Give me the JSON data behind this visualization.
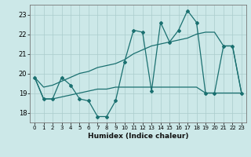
{
  "title": "",
  "xlabel": "Humidex (Indice chaleur)",
  "background_color": "#cce8e8",
  "grid_color": "#aacccc",
  "line_color": "#1a7070",
  "x_hours": [
    0,
    1,
    2,
    3,
    4,
    5,
    6,
    7,
    8,
    9,
    10,
    11,
    12,
    13,
    14,
    15,
    16,
    17,
    18,
    19,
    20,
    21,
    22,
    23
  ],
  "y_main": [
    19.8,
    18.7,
    18.7,
    19.8,
    19.4,
    18.7,
    18.6,
    17.8,
    17.8,
    18.6,
    20.6,
    22.2,
    22.1,
    19.1,
    22.6,
    21.6,
    22.2,
    23.2,
    22.6,
    19.0,
    19.0,
    21.4,
    21.4,
    19.0
  ],
  "y_upper": [
    19.8,
    19.3,
    19.4,
    19.6,
    19.8,
    20.0,
    20.1,
    20.3,
    20.4,
    20.5,
    20.7,
    21.0,
    21.2,
    21.4,
    21.5,
    21.6,
    21.7,
    21.8,
    22.0,
    22.1,
    22.1,
    21.4,
    21.4,
    19.0
  ],
  "y_lower": [
    19.8,
    18.7,
    18.7,
    18.8,
    18.9,
    19.0,
    19.1,
    19.2,
    19.2,
    19.3,
    19.3,
    19.3,
    19.3,
    19.3,
    19.3,
    19.3,
    19.3,
    19.3,
    19.3,
    19.0,
    19.0,
    19.0,
    19.0,
    19.0
  ],
  "ylim": [
    17.5,
    23.5
  ],
  "yticks": [
    18,
    19,
    20,
    21,
    22,
    23
  ],
  "xlim": [
    -0.5,
    23.5
  ]
}
